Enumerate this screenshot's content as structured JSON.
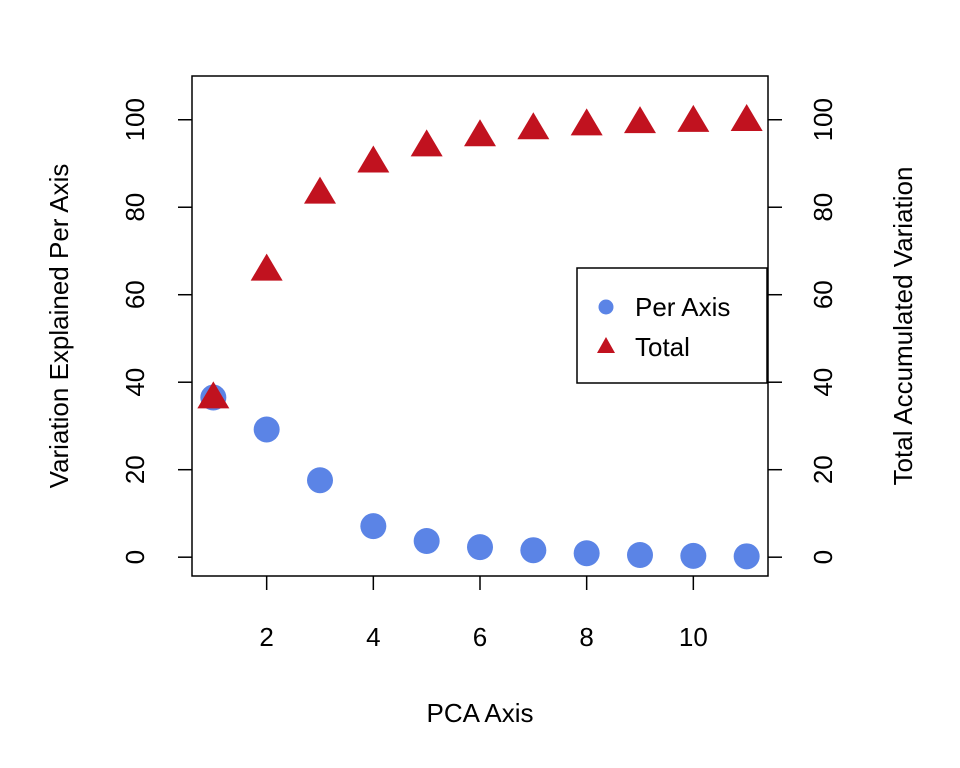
{
  "chart_data": {
    "type": "scatter",
    "title": "",
    "xlabel": "PCA Axis",
    "ylabel_left": "Variation Explained Per Axis",
    "ylabel_right": "Total Accumulated Variation",
    "x": [
      1,
      2,
      3,
      4,
      5,
      6,
      7,
      8,
      9,
      10,
      11
    ],
    "xlim": [
      0.6,
      11.4
    ],
    "ylim": [
      -4.3,
      110
    ],
    "x_ticks": [
      2,
      4,
      6,
      8,
      10
    ],
    "y_ticks_left": [
      0,
      20,
      40,
      60,
      80,
      100
    ],
    "y_ticks_right": [
      0,
      20,
      40,
      60,
      80,
      100
    ],
    "grid": false,
    "legend_position": "right",
    "series": [
      {
        "name": "Per Axis",
        "marker": "circle",
        "color": "#5B84E6",
        "axis": "left",
        "values": [
          36.5,
          29.2,
          17.6,
          7.1,
          3.7,
          2.3,
          1.6,
          0.9,
          0.5,
          0.3,
          0.2
        ]
      },
      {
        "name": "Total",
        "marker": "triangle",
        "color": "#C1121F",
        "axis": "right",
        "values": [
          36.5,
          65.7,
          83.3,
          90.4,
          94.1,
          96.4,
          98.0,
          98.9,
          99.4,
          99.7,
          99.9
        ]
      }
    ]
  }
}
